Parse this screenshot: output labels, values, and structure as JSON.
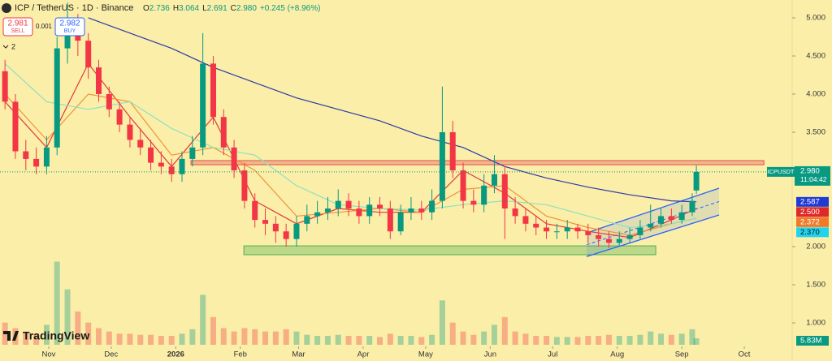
{
  "chart_data": {
    "type": "candlestick",
    "title": "ICP / TetherUS · 1D · Binance",
    "ohlc_header": {
      "o": "O",
      "o_value": "2.736",
      "h": "H",
      "h_value": "3.064",
      "l": "L",
      "l_value": "2.691",
      "c": "C",
      "c_value": "2.980",
      "change": "+0.245 (+8.96%)"
    },
    "trade_buttons": {
      "sell_price": "2.981",
      "sell": "SELL",
      "spread": "0.001",
      "buy_price": "2.982",
      "buy": "BUY"
    },
    "indicator_count": "2",
    "x": [
      10,
      15,
      20,
      25,
      30,
      35,
      40,
      45,
      50,
      55,
      60,
      65,
      70,
      75,
      80,
      85,
      90,
      95,
      100,
      105,
      110,
      115,
      120,
      125,
      130,
      135,
      140,
      145,
      150,
      155,
      160,
      165,
      170,
      175,
      180,
      185,
      190,
      195,
      200,
      205,
      210,
      215,
      220,
      225,
      230,
      235,
      240,
      245,
      250,
      255,
      260,
      265,
      270,
      275,
      280,
      285,
      290,
      295,
      300,
      305,
      310,
      315,
      320,
      325,
      330,
      335,
      340,
      342
    ],
    "open": [
      4.3,
      3.9,
      3.25,
      3.15,
      3.05,
      3.3,
      4.6,
      4.9,
      4.7,
      4.35,
      4.0,
      3.8,
      3.6,
      3.4,
      3.3,
      3.1,
      3.05,
      2.95,
      3.15,
      3.3,
      4.4,
      3.7,
      3.3,
      3.0,
      2.6,
      2.35,
      2.3,
      2.2,
      2.1,
      2.3,
      2.4,
      2.45,
      2.5,
      2.6,
      2.5,
      2.4,
      2.55,
      2.5,
      2.2,
      2.45,
      2.5,
      2.45,
      2.6,
      3.5,
      3.0,
      2.6,
      2.55,
      2.8,
      2.95,
      2.5,
      2.4,
      2.3,
      2.25,
      2.2,
      2.2,
      2.25,
      2.2,
      2.15,
      2.1,
      2.05,
      2.1,
      2.15,
      2.25,
      2.3,
      2.4,
      2.35,
      2.45,
      2.736
    ],
    "high": [
      4.45,
      4.0,
      3.4,
      3.3,
      3.45,
      4.75,
      5.2,
      5.05,
      4.8,
      4.45,
      4.1,
      3.9,
      3.7,
      3.55,
      3.4,
      3.25,
      3.15,
      3.25,
      3.45,
      4.8,
      4.5,
      3.8,
      3.4,
      3.1,
      2.7,
      2.5,
      2.4,
      2.3,
      2.4,
      2.55,
      2.6,
      2.65,
      2.75,
      2.7,
      2.6,
      2.65,
      2.65,
      2.6,
      2.55,
      2.65,
      2.6,
      2.75,
      4.1,
      3.65,
      3.1,
      2.75,
      2.95,
      3.2,
      3.05,
      2.65,
      2.5,
      2.4,
      2.35,
      2.3,
      2.35,
      2.3,
      2.3,
      2.25,
      2.2,
      2.2,
      2.25,
      2.35,
      2.55,
      2.5,
      2.5,
      2.55,
      2.7,
      3.064
    ],
    "low": [
      3.8,
      3.15,
      3.0,
      2.95,
      2.95,
      3.2,
      4.4,
      4.5,
      4.2,
      3.9,
      3.7,
      3.5,
      3.3,
      3.2,
      3.0,
      2.95,
      2.85,
      2.85,
      3.05,
      3.2,
      3.6,
      3.2,
      2.9,
      2.5,
      2.25,
      2.15,
      2.05,
      2.0,
      2.0,
      2.2,
      2.3,
      2.35,
      2.4,
      2.4,
      2.3,
      2.3,
      2.4,
      2.1,
      2.15,
      2.35,
      2.35,
      2.35,
      2.5,
      2.9,
      2.5,
      2.45,
      2.45,
      2.7,
      2.1,
      2.3,
      2.2,
      2.15,
      2.1,
      2.1,
      2.1,
      2.1,
      2.05,
      2.0,
      1.98,
      2.0,
      2.05,
      2.1,
      2.2,
      2.25,
      2.3,
      2.3,
      2.4,
      2.691
    ],
    "close": [
      3.9,
      3.25,
      3.15,
      3.05,
      3.3,
      4.6,
      4.9,
      4.7,
      4.35,
      4.0,
      3.8,
      3.6,
      3.4,
      3.3,
      3.1,
      3.05,
      2.95,
      3.15,
      3.3,
      4.4,
      3.7,
      3.3,
      3.0,
      2.6,
      2.35,
      2.3,
      2.2,
      2.1,
      2.3,
      2.4,
      2.45,
      2.5,
      2.6,
      2.5,
      2.4,
      2.55,
      2.5,
      2.2,
      2.45,
      2.5,
      2.45,
      2.6,
      3.5,
      3.0,
      2.6,
      2.55,
      2.8,
      2.95,
      2.5,
      2.4,
      2.3,
      2.25,
      2.2,
      2.2,
      2.25,
      2.2,
      2.15,
      2.1,
      2.05,
      2.1,
      2.15,
      2.25,
      2.3,
      2.4,
      2.35,
      2.45,
      2.6,
      2.98
    ],
    "up_color": "#089981",
    "down_color": "#f23645",
    "volume": {
      "values": [
        20,
        15,
        12,
        10,
        18,
        75,
        50,
        30,
        20,
        15,
        12,
        10,
        10,
        9,
        9,
        8,
        8,
        10,
        14,
        45,
        25,
        15,
        12,
        15,
        14,
        12,
        12,
        14,
        12,
        9,
        8,
        8,
        9,
        8,
        8,
        8,
        7,
        10,
        8,
        8,
        7,
        9,
        40,
        20,
        12,
        9,
        12,
        18,
        25,
        12,
        10,
        8,
        8,
        7,
        7,
        7,
        8,
        8,
        9,
        8,
        8,
        9,
        12,
        10,
        9,
        10,
        14,
        5.83
      ],
      "ylim": [
        0,
        300
      ],
      "last_label": "5.83M"
    },
    "moving_averages": {
      "x": [
        10,
        30,
        50,
        70,
        90,
        110,
        130,
        150,
        170,
        190,
        210,
        230,
        250,
        270,
        290,
        310,
        330,
        342
      ],
      "series": [
        {
          "color": "#2a3aa8",
          "label_color": "#1e3bd6",
          "values": [
            null,
            null,
            5.0,
            4.8,
            4.6,
            4.35,
            4.15,
            3.95,
            3.8,
            3.65,
            3.45,
            3.3,
            3.05,
            2.9,
            2.78,
            2.68,
            2.6,
            2.587
          ],
          "last_label": "2.587"
        },
        {
          "color": "#e03a3a",
          "label_color": "#e02828",
          "values": [
            3.9,
            3.3,
            4.4,
            3.7,
            3.05,
            3.7,
            2.6,
            2.3,
            2.5,
            2.45,
            2.45,
            3.0,
            2.7,
            2.3,
            2.2,
            2.12,
            2.35,
            2.5
          ],
          "last_label": "2.500"
        },
        {
          "color": "#f0933a",
          "label_color": "#f07a2a",
          "values": [
            4.0,
            3.4,
            4.0,
            3.9,
            3.2,
            3.3,
            3.0,
            2.4,
            2.45,
            2.5,
            2.45,
            2.75,
            2.8,
            2.4,
            2.25,
            2.15,
            2.3,
            2.372
          ],
          "last_label": "2.372"
        },
        {
          "color": "#8fe0c0",
          "label_color": "#22d3ee",
          "values": [
            4.4,
            3.9,
            3.8,
            3.9,
            3.55,
            3.3,
            3.2,
            2.8,
            2.55,
            2.5,
            2.48,
            2.55,
            2.6,
            2.55,
            2.4,
            2.25,
            2.3,
            2.37
          ],
          "last_label": "2.370"
        }
      ]
    },
    "price_tag": {
      "symbol": "ICPUSDT",
      "label": "2.980",
      "countdown": "11:04:42",
      "color": "#089981"
    },
    "zones": [
      {
        "x": [
          99.3,
          374.4
        ],
        "y": [
          3.074,
          3.128
        ],
        "color": "#e05050"
      },
      {
        "x": [
          124.7,
          322.5
        ],
        "y": [
          1.894,
          2.01
        ],
        "color": "#4caf50"
      }
    ],
    "channel": {
      "x": [
        289.3,
        352.9
      ],
      "upper": [
        2.18,
        2.766
      ],
      "lower": [
        1.87,
        2.415
      ],
      "color": "#2962ff"
    },
    "xlim": [
      7.6,
      388
    ],
    "xticks": [
      {
        "value": 31,
        "label": "Nov"
      },
      {
        "value": 61,
        "label": "Dec"
      },
      {
        "value": 92,
        "label": "2026"
      },
      {
        "value": 123,
        "label": "Feb"
      },
      {
        "value": 151,
        "label": "Mar"
      },
      {
        "value": 182,
        "label": "Apr"
      },
      {
        "value": 212,
        "label": "May"
      },
      {
        "value": 243,
        "label": "Jun"
      },
      {
        "value": 273,
        "label": "Jul"
      },
      {
        "value": 304,
        "label": "Aug"
      },
      {
        "value": 335,
        "label": "Sep"
      },
      {
        "value": 365,
        "label": "Oct"
      }
    ],
    "ylim": [
      0.713,
      5.234
    ],
    "yticks": [
      {
        "value": 5,
        "label": "5.000"
      },
      {
        "value": 4.5,
        "label": "4.500"
      },
      {
        "value": 4,
        "label": "4.000"
      },
      {
        "value": 3.5,
        "label": "3.500"
      },
      {
        "value": 2,
        "label": "2.000"
      },
      {
        "value": 1.5,
        "label": "1.500"
      },
      {
        "value": 1,
        "label": "1.000"
      }
    ],
    "watermark": "TradingView"
  }
}
